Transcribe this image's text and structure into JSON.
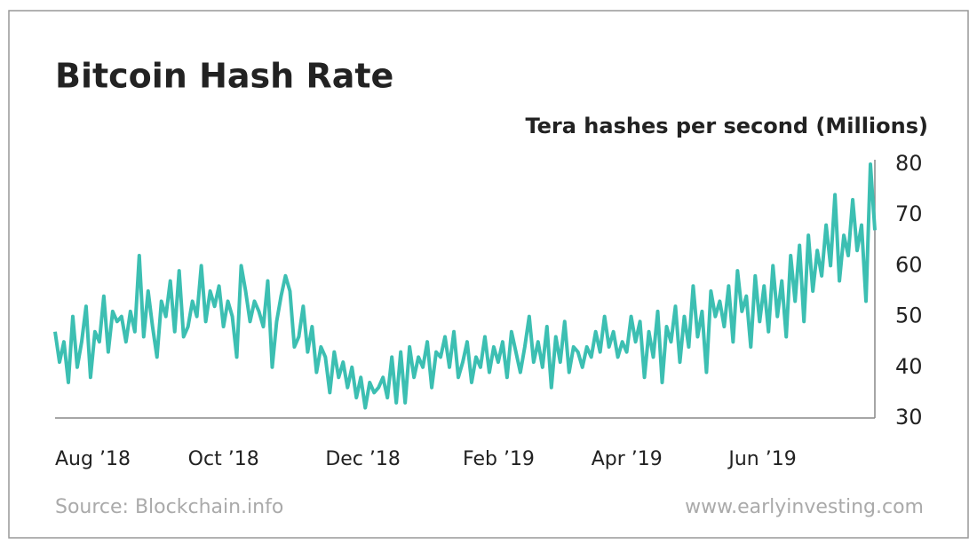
{
  "chart_data": {
    "type": "line",
    "title": "Bitcoin Hash Rate",
    "y_label": "Tera hashes per second (Millions)",
    "source": "Source: Blockchain.info",
    "website": "www.earlyinvesting.com",
    "color": "#3cbfb2",
    "grid": false,
    "ylim": [
      30,
      80
    ],
    "yticks": [
      30,
      40,
      50,
      60,
      70,
      80
    ],
    "categories": [
      "Aug ’18",
      null,
      null,
      null,
      null,
      null,
      null,
      null,
      null,
      null,
      null,
      null,
      null,
      null,
      null,
      null,
      null,
      null,
      null,
      null,
      null,
      null,
      null,
      null,
      null,
      null,
      null,
      null,
      null,
      null,
      "Oct ’18",
      null,
      null,
      null,
      null,
      null,
      null,
      null,
      null,
      null,
      null,
      null,
      null,
      null,
      null,
      null,
      null,
      null,
      null,
      null,
      null,
      null,
      null,
      null,
      null,
      null,
      null,
      null,
      null,
      null,
      null,
      "Dec ’18",
      null,
      null,
      null,
      null,
      null,
      null,
      null,
      null,
      null,
      null,
      null,
      null,
      null,
      null,
      null,
      null,
      null,
      null,
      null,
      null,
      null,
      null,
      null,
      null,
      null,
      null,
      null,
      null,
      null,
      null,
      "Feb ’19",
      null,
      null,
      null,
      null,
      null,
      null,
      null,
      null,
      null,
      null,
      null,
      null,
      null,
      null,
      null,
      null,
      null,
      null,
      null,
      null,
      null,
      null,
      null,
      null,
      null,
      null,
      null,
      null,
      "Apr ’19",
      null,
      null,
      null,
      null,
      null,
      null,
      null,
      null,
      null,
      null,
      null,
      null,
      null,
      null,
      null,
      null,
      null,
      null,
      null,
      null,
      null,
      null,
      null,
      null,
      null,
      null,
      null,
      null,
      null,
      null,
      "Jun ’19",
      null,
      null,
      null,
      null,
      null,
      null,
      null,
      null,
      null,
      null,
      null,
      null,
      null,
      null,
      null,
      null,
      null,
      null,
      null,
      null,
      null,
      null,
      null,
      null,
      null,
      null,
      null,
      null,
      null,
      null,
      null,
      null,
      null
    ],
    "values": [
      47,
      41,
      45,
      37,
      50,
      40,
      45,
      52,
      38,
      47,
      45,
      54,
      43,
      51,
      49,
      50,
      45,
      51,
      47,
      62,
      46,
      55,
      48,
      42,
      53,
      50,
      57,
      47,
      59,
      46,
      48,
      53,
      50,
      60,
      49,
      55,
      52,
      56,
      48,
      53,
      50,
      42,
      60,
      55,
      49,
      53,
      51,
      48,
      57,
      40,
      49,
      54,
      58,
      55,
      44,
      46,
      52,
      43,
      48,
      39,
      44,
      42,
      35,
      43,
      38,
      41,
      36,
      40,
      34,
      38,
      32,
      37,
      35,
      36,
      38,
      34,
      42,
      33,
      43,
      33,
      44,
      38,
      42,
      40,
      45,
      36,
      43,
      42,
      46,
      40,
      47,
      38,
      41,
      45,
      37,
      42,
      40,
      46,
      39,
      44,
      41,
      45,
      38,
      47,
      43,
      39,
      44,
      50,
      41,
      45,
      40,
      48,
      36,
      46,
      41,
      49,
      39,
      44,
      43,
      40,
      44,
      42,
      47,
      43,
      50,
      44,
      47,
      42,
      45,
      43,
      50,
      45,
      49,
      38,
      47,
      42,
      51,
      37,
      48,
      45,
      52,
      41,
      50,
      44,
      56,
      46,
      51,
      39,
      55,
      50,
      53,
      48,
      56,
      45,
      59,
      51,
      54,
      44,
      58,
      49,
      56,
      47,
      60,
      50,
      57,
      46,
      62,
      53,
      64,
      49,
      66,
      55,
      63,
      58,
      68,
      60,
      74,
      57,
      66,
      62,
      73,
      63,
      68,
      53,
      80,
      67
    ]
  }
}
